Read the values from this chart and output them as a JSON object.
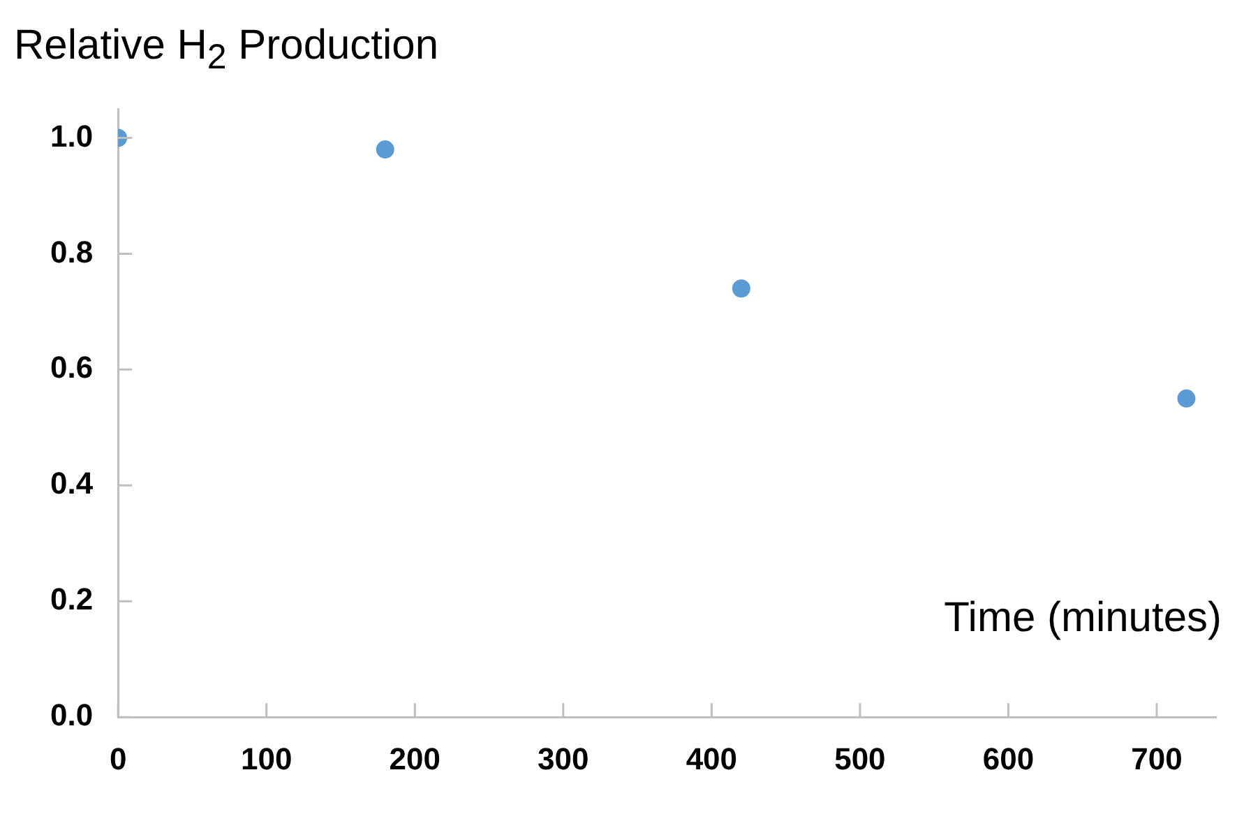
{
  "chart_data": {
    "type": "scatter",
    "ylabel": "Relative H$_{2}$ Production",
    "xlabel": "Time (minutes)",
    "x": [
      0,
      180,
      420,
      720
    ],
    "series": [
      {
        "color": "#5b9bd5",
        "values": [
          1.0,
          0.98,
          0.74,
          0.55
        ]
      }
    ],
    "xlim": [
      0,
      740
    ],
    "xticks": [
      0,
      100,
      200,
      300,
      400,
      500,
      600,
      700
    ],
    "ylim": [
      0,
      1.05
    ],
    "yticks": [
      {
        "value": 0,
        "label": "0.0"
      },
      {
        "value": 0.2,
        "label": "0.2"
      },
      {
        "value": 0.4,
        "label": "0.4"
      },
      {
        "value": 0.6,
        "label": "0.6"
      },
      {
        "value": 0.8,
        "label": "0.8"
      },
      {
        "value": 1,
        "label": "1.0"
      }
    ],
    "marker": "circle",
    "grid": false,
    "legend": false
  }
}
